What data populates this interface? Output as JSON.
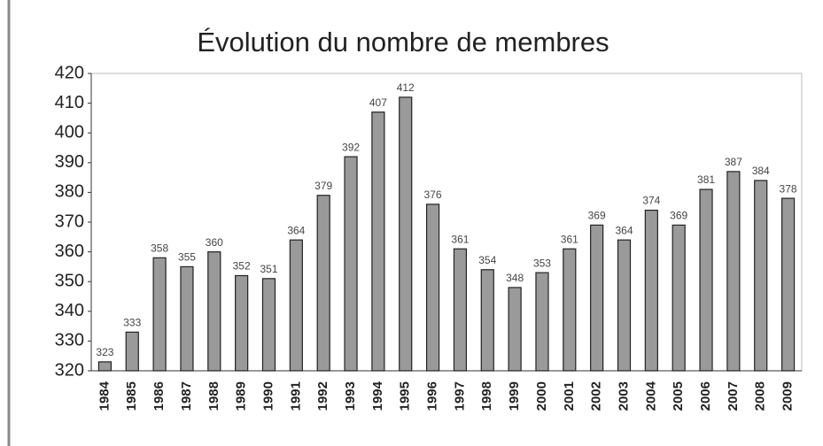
{
  "chart_data": {
    "type": "bar",
    "title": "Évolution du nombre de membres",
    "categories": [
      "1984",
      "1985",
      "1986",
      "1987",
      "1988",
      "1989",
      "1990",
      "1991",
      "1992",
      "1993",
      "1994",
      "1995",
      "1996",
      "1997",
      "1998",
      "1999",
      "2000",
      "2001",
      "2002",
      "2003",
      "2004",
      "2005",
      "2006",
      "2007",
      "2008",
      "2009"
    ],
    "values": [
      323,
      333,
      358,
      355,
      360,
      352,
      351,
      364,
      379,
      392,
      407,
      412,
      376,
      361,
      354,
      348,
      353,
      361,
      369,
      364,
      374,
      369,
      381,
      387,
      384,
      378
    ],
    "color": "#9a9a9a",
    "ylim": [
      320,
      420
    ],
    "yticks": [
      320,
      330,
      340,
      350,
      360,
      370,
      380,
      390,
      400,
      410,
      420
    ],
    "grid": false
  }
}
